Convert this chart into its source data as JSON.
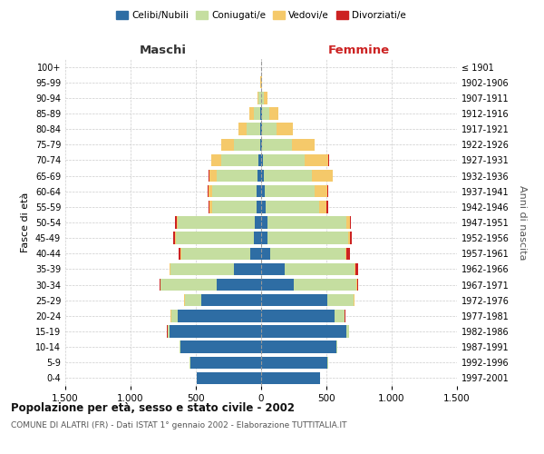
{
  "age_groups": [
    "0-4",
    "5-9",
    "10-14",
    "15-19",
    "20-24",
    "25-29",
    "30-34",
    "35-39",
    "40-44",
    "45-49",
    "50-54",
    "55-59",
    "60-64",
    "65-69",
    "70-74",
    "75-79",
    "80-84",
    "85-89",
    "90-94",
    "95-99",
    "100+"
  ],
  "birth_years": [
    "1997-2001",
    "1992-1996",
    "1987-1991",
    "1982-1986",
    "1977-1981",
    "1972-1976",
    "1967-1971",
    "1962-1966",
    "1957-1961",
    "1952-1956",
    "1947-1951",
    "1942-1946",
    "1937-1941",
    "1932-1936",
    "1927-1931",
    "1922-1926",
    "1917-1921",
    "1912-1916",
    "1907-1911",
    "1902-1906",
    "≤ 1901"
  ],
  "males": {
    "celibi": [
      490,
      545,
      620,
      700,
      640,
      460,
      340,
      205,
      80,
      55,
      50,
      38,
      32,
      28,
      20,
      10,
      8,
      6,
      3,
      1,
      0
    ],
    "coniugati": [
      2,
      2,
      5,
      18,
      50,
      125,
      430,
      490,
      530,
      600,
      590,
      340,
      340,
      315,
      285,
      200,
      100,
      50,
      15,
      2,
      0
    ],
    "vedovi": [
      0,
      0,
      0,
      0,
      2,
      2,
      3,
      4,
      5,
      5,
      8,
      18,
      28,
      55,
      75,
      95,
      65,
      32,
      12,
      2,
      1
    ],
    "divorziati": [
      0,
      0,
      0,
      2,
      4,
      5,
      5,
      5,
      18,
      12,
      10,
      8,
      8,
      4,
      0,
      0,
      0,
      0,
      0,
      0,
      0
    ]
  },
  "females": {
    "nubili": [
      450,
      510,
      575,
      650,
      565,
      510,
      250,
      180,
      72,
      52,
      48,
      32,
      28,
      22,
      15,
      8,
      6,
      5,
      2,
      1,
      0
    ],
    "coniugate": [
      2,
      2,
      8,
      22,
      75,
      200,
      480,
      535,
      575,
      615,
      605,
      415,
      385,
      365,
      315,
      225,
      110,
      55,
      20,
      2,
      0
    ],
    "vedove": [
      0,
      0,
      0,
      1,
      2,
      3,
      3,
      5,
      8,
      12,
      25,
      55,
      95,
      160,
      185,
      175,
      130,
      75,
      28,
      5,
      2
    ],
    "divorziate": [
      0,
      0,
      0,
      1,
      2,
      5,
      10,
      20,
      28,
      15,
      12,
      10,
      8,
      5,
      5,
      0,
      0,
      0,
      0,
      0,
      0
    ]
  },
  "color_celibi": "#2e6da4",
  "color_coniugati": "#c5dea0",
  "color_vedovi": "#f5c96a",
  "color_divorziati": "#cc2222",
  "title_main": "Popolazione per età, sesso e stato civile - 2002",
  "title_sub": "COMUNE DI ALATRI (FR) - Dati ISTAT 1° gennaio 2002 - Elaborazione TUTTITALIA.IT",
  "ylabel_left": "Fasce di età",
  "ylabel_right": "Anni di nascita",
  "xlabel_left": "Maschi",
  "xlabel_right": "Femmine",
  "xlim": 1500,
  "background_color": "#ffffff",
  "grid_color": "#cccccc"
}
